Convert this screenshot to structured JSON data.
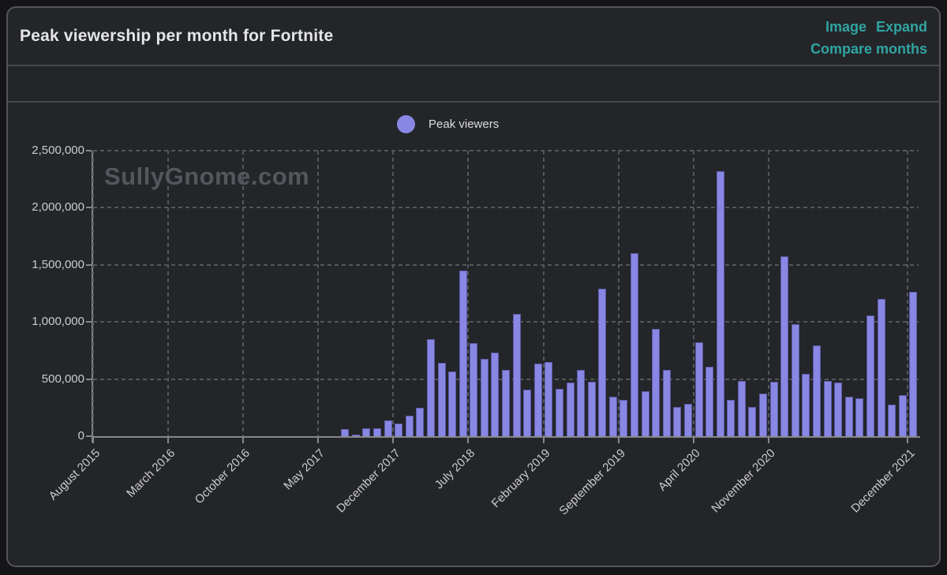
{
  "header": {
    "title": "Peak viewership per month for Fortnite",
    "link_image": "Image",
    "link_expand": "Expand",
    "link_compare": "Compare months"
  },
  "watermark": "SullyGnome.com",
  "chart_data": {
    "type": "bar",
    "title": "Peak viewership per month for Fortnite",
    "legend": "Peak viewers",
    "legend_position": "top-center",
    "bar_color": "#8987e4",
    "grid": "dashed",
    "ylim": [
      0,
      2500000
    ],
    "y_tick_values": [
      0,
      500000,
      1000000,
      1500000,
      2000000,
      2500000
    ],
    "y_tick_labels": [
      "0",
      "500,000",
      "1,000,000",
      "1,500,000",
      "2,000,000",
      "2,500,000"
    ],
    "x_axis_start": "August 2015",
    "x_axis_end": "December 2021",
    "x_axis_months_total": 77,
    "x_tick_labels": [
      "August 2015",
      "March 2016",
      "October 2016",
      "May 2017",
      "December 2017",
      "July 2018",
      "February 2019",
      "September 2019",
      "April 2020",
      "November 2020",
      "December 2021"
    ],
    "x_tick_month_indices": [
      0,
      7,
      14,
      21,
      28,
      35,
      42,
      49,
      56,
      63,
      76
    ],
    "first_bar_month": "July 2017",
    "first_bar_month_index": 23,
    "points": [
      {
        "month": "July 2017",
        "value": 64000
      },
      {
        "month": "August 2017",
        "value": 12000
      },
      {
        "month": "September 2017",
        "value": 69000
      },
      {
        "month": "October 2017",
        "value": 66000
      },
      {
        "month": "November 2017",
        "value": 138000
      },
      {
        "month": "December 2017",
        "value": 108000
      },
      {
        "month": "January 2018",
        "value": 177000
      },
      {
        "month": "February 2018",
        "value": 248000
      },
      {
        "month": "March 2018",
        "value": 851000
      },
      {
        "month": "April 2018",
        "value": 644000
      },
      {
        "month": "May 2018",
        "value": 568000
      },
      {
        "month": "June 2018",
        "value": 1449000
      },
      {
        "month": "July 2018",
        "value": 816000
      },
      {
        "month": "August 2018",
        "value": 678000
      },
      {
        "month": "September 2018",
        "value": 733000
      },
      {
        "month": "October 2018",
        "value": 582000
      },
      {
        "month": "November 2018",
        "value": 1070000
      },
      {
        "month": "December 2018",
        "value": 408000
      },
      {
        "month": "January 2019",
        "value": 637000
      },
      {
        "month": "February 2019",
        "value": 650000
      },
      {
        "month": "March 2019",
        "value": 414000
      },
      {
        "month": "April 2019",
        "value": 472000
      },
      {
        "month": "May 2019",
        "value": 580000
      },
      {
        "month": "June 2019",
        "value": 477000
      },
      {
        "month": "July 2019",
        "value": 1293000
      },
      {
        "month": "August 2019",
        "value": 345000
      },
      {
        "month": "September 2019",
        "value": 316000
      },
      {
        "month": "October 2019",
        "value": 1604000
      },
      {
        "month": "November 2019",
        "value": 395000
      },
      {
        "month": "December 2019",
        "value": 936000
      },
      {
        "month": "January 2020",
        "value": 580000
      },
      {
        "month": "February 2020",
        "value": 257000
      },
      {
        "month": "March 2020",
        "value": 281000
      },
      {
        "month": "April 2020",
        "value": 821000
      },
      {
        "month": "May 2020",
        "value": 608000
      },
      {
        "month": "June 2020",
        "value": 2318000
      },
      {
        "month": "July 2020",
        "value": 317000
      },
      {
        "month": "August 2020",
        "value": 483000
      },
      {
        "month": "September 2020",
        "value": 255000
      },
      {
        "month": "October 2020",
        "value": 373000
      },
      {
        "month": "November 2020",
        "value": 476000
      },
      {
        "month": "December 2020",
        "value": 1573000
      },
      {
        "month": "January 2021",
        "value": 980000
      },
      {
        "month": "February 2021",
        "value": 545000
      },
      {
        "month": "March 2021",
        "value": 793000
      },
      {
        "month": "April 2021",
        "value": 483000
      },
      {
        "month": "May 2021",
        "value": 469000
      },
      {
        "month": "June 2021",
        "value": 345000
      },
      {
        "month": "July 2021",
        "value": 331000
      },
      {
        "month": "August 2021",
        "value": 1056000
      },
      {
        "month": "September 2021",
        "value": 1202000
      },
      {
        "month": "October 2021",
        "value": 276000
      },
      {
        "month": "November 2021",
        "value": 360000
      },
      {
        "month": "December 2021",
        "value": 1262000
      }
    ]
  }
}
